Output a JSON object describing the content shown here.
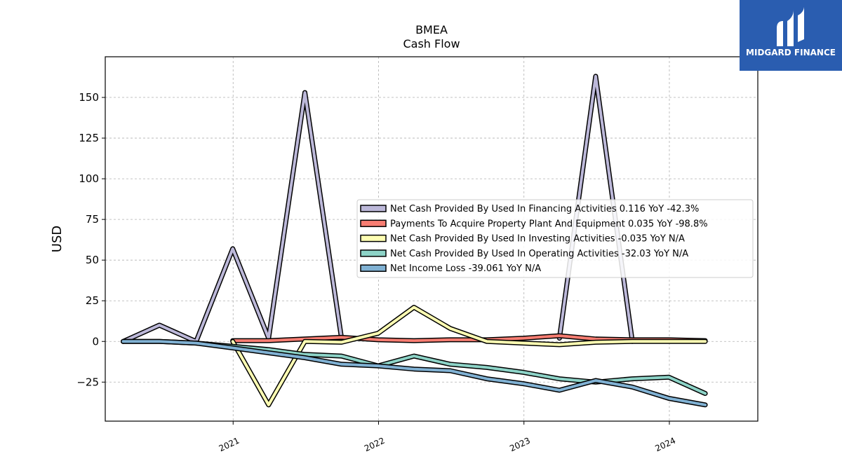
{
  "brand": {
    "name": "MIDGARD FINANCE",
    "color": "#2a5db0"
  },
  "chart_data": {
    "type": "line",
    "title": "BMEA",
    "subtitle": "Cash Flow",
    "ylabel": "USD",
    "xlabel": "",
    "ylim": [
      -49,
      175
    ],
    "xlim": [
      "2020-02-15",
      "2024-08-10"
    ],
    "yticks": [
      -25,
      0,
      25,
      50,
      75,
      100,
      125,
      150
    ],
    "ytick_labels": [
      "−25",
      "0",
      "25",
      "50",
      "75",
      "100",
      "125",
      "150"
    ],
    "xticks": [
      "2021-01-01",
      "2022-01-01",
      "2023-01-01",
      "2024-01-01"
    ],
    "xtick_labels": [
      "2021",
      "2022",
      "2023",
      "2024"
    ],
    "grid": true,
    "legend_position": "center-right",
    "series": [
      {
        "name": "Net Cash Provided By Used In Financing Activities",
        "legend_label": "Net Cash Provided By Used In Financing Activities  0.116 YoY -42.3%",
        "color": "#bcb8d9",
        "x": [
          "2020-03-31",
          "2020-06-30",
          "2020-09-30",
          "2020-12-31",
          "2021-03-31",
          "2021-06-30",
          "2021-09-30"
        ],
        "values": [
          0,
          10,
          0,
          57,
          2,
          153,
          2
        ]
      },
      {
        "name": "Net Cash Provided By Used In Financing Activities (2023)",
        "legend_label": "",
        "color": "#bcb8d9",
        "x": [
          "2023-03-31",
          "2023-06-30",
          "2023-09-30"
        ],
        "values": [
          2,
          163,
          0
        ]
      },
      {
        "name": "Payments To Acquire Property Plant And Equipment",
        "legend_label": "Payments To Acquire Property Plant And Equipment  0.035 YoY -98.8%",
        "color": "#f77d72",
        "x": [
          "2020-12-31",
          "2021-03-31",
          "2021-06-30",
          "2021-09-30",
          "2021-12-31",
          "2022-03-31",
          "2022-06-30",
          "2022-09-30",
          "2022-12-31",
          "2023-03-31",
          "2023-06-30",
          "2023-09-30",
          "2023-12-31",
          "2024-03-31"
        ],
        "values": [
          0.5,
          0.5,
          1.5,
          2.5,
          1,
          0.5,
          1,
          1,
          2,
          3.5,
          1.5,
          1,
          1,
          0.5
        ]
      },
      {
        "name": "Net Cash Provided By Used In Investing Activities",
        "legend_label": "Net Cash Provided By Used In Investing Activities  -0.035 YoY N/A",
        "color": "#ffffb3",
        "x": [
          "2020-12-31",
          "2021-03-31",
          "2021-06-30",
          "2021-09-30",
          "2021-12-31",
          "2022-03-31",
          "2022-06-30",
          "2022-09-30",
          "2022-12-31",
          "2023-03-31",
          "2023-06-30",
          "2023-09-30",
          "2023-12-31",
          "2024-03-31"
        ],
        "values": [
          0,
          -39,
          0,
          -0.5,
          5,
          21,
          8,
          0,
          -1,
          -2,
          -0.5,
          0,
          0,
          0
        ]
      },
      {
        "name": "Net Cash Provided By Used In Operating Activities",
        "legend_label": "Net Cash Provided By Used In Operating Activities  -32.03 YoY N/A",
        "color": "#8dd3c7",
        "x": [
          "2020-03-31",
          "2020-06-30",
          "2020-09-30",
          "2020-12-31",
          "2021-03-31",
          "2021-06-30",
          "2021-09-30",
          "2021-12-31",
          "2022-03-31",
          "2022-06-30",
          "2022-09-30",
          "2022-12-31",
          "2023-03-31",
          "2023-06-30",
          "2023-09-30",
          "2023-12-31",
          "2024-03-31"
        ],
        "values": [
          0,
          0,
          -1,
          -3,
          -5,
          -8,
          -9,
          -15,
          -9,
          -14,
          -16,
          -19,
          -23,
          -25,
          -23,
          -22,
          -32
        ]
      },
      {
        "name": "Net Income Loss",
        "legend_label": "Net Income Loss  -39.061 YoY N/A",
        "color": "#80b1d3",
        "x": [
          "2020-03-31",
          "2020-06-30",
          "2020-09-30",
          "2020-12-31",
          "2021-03-31",
          "2021-06-30",
          "2021-09-30",
          "2021-12-31",
          "2022-03-31",
          "2022-06-30",
          "2022-09-30",
          "2022-12-31",
          "2023-03-31",
          "2023-06-30",
          "2023-09-30",
          "2023-12-31",
          "2024-03-31"
        ],
        "values": [
          0,
          0,
          -1,
          -4,
          -7,
          -10,
          -14,
          -15,
          -17,
          -18,
          -23,
          -26,
          -30,
          -24,
          -28,
          -35,
          -39
        ]
      }
    ]
  }
}
